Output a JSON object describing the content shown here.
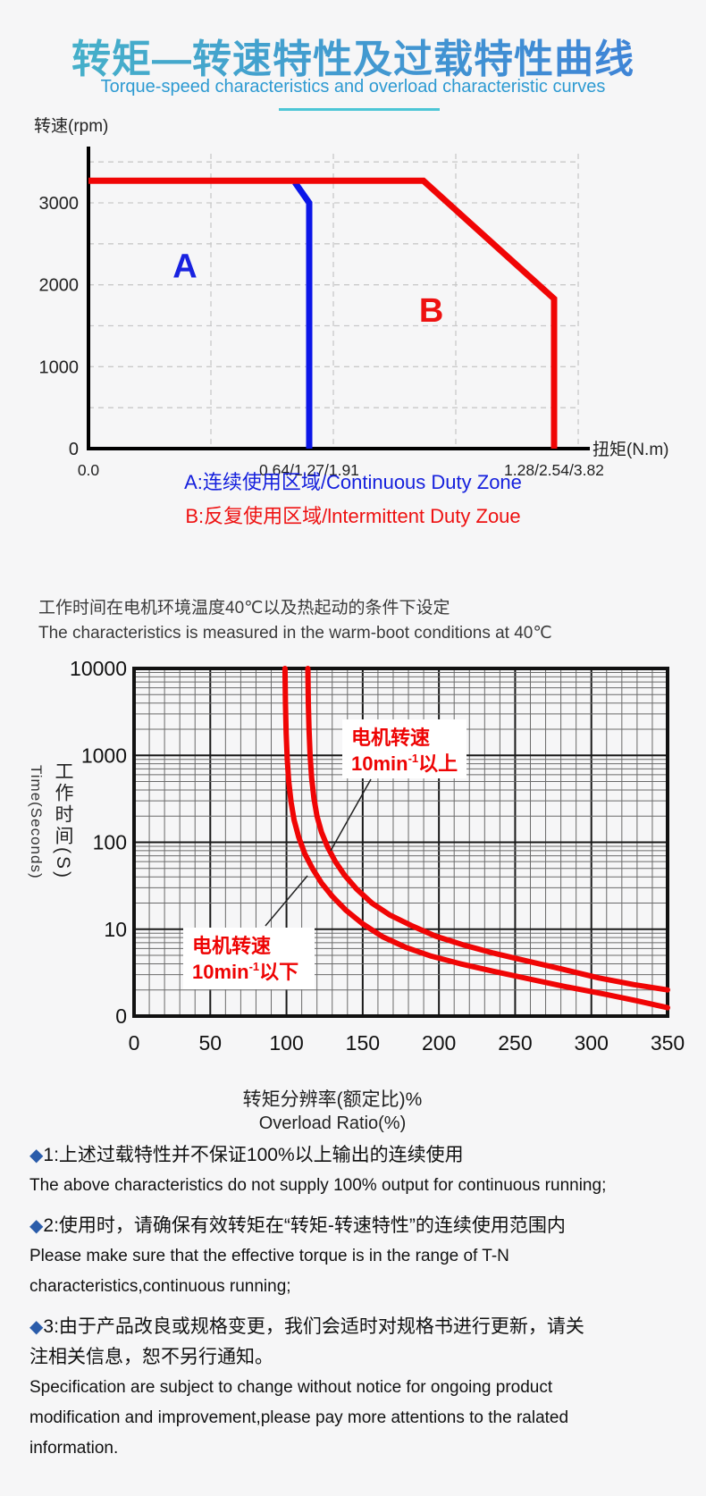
{
  "page_bg": "#f6f6f7",
  "header": {
    "title": "转矩—转速特性及过载特性曲线",
    "subtitle": "Torque-speed characteristics and overload characteristic curves",
    "title_gradient": [
      "#46b5c8",
      "#3e7fd8"
    ],
    "subtitle_color": "#2d9ad2",
    "underline_color": "#4cc6d6"
  },
  "conditions": {
    "zh": "工作时间在电机环境温度40℃以及热起动的条件下设定",
    "en": "The characteristics is measured in the warm-boot conditions at 40℃"
  },
  "legend": {
    "a": {
      "text": "A:连续使用区域/Continuous Duty Zone",
      "color": "#1520dd"
    },
    "b": {
      "text": "B:反复使用区域/lntermittent Duty Zoue",
      "color": "#ee1111"
    }
  },
  "chart_data": [
    {
      "type": "line",
      "title": "Torque-speed characteristic",
      "xlabel": "扭矩(N.m)",
      "ylabel": "转速(rpm)",
      "y_ticks": [
        0,
        1000,
        2000,
        3000
      ],
      "ylim": [
        0,
        3600
      ],
      "grid": "dashed, horizontal every 500 rpm, vertical quarters",
      "x_ticks": [
        {
          "label": "0.0",
          "pos": 0.0
        },
        {
          "label": "0.64/1.27/1.91",
          "pos": 0.4507
        },
        {
          "label": "1.28/2.54/3.82",
          "pos": 0.9507
        }
      ],
      "series": [
        {
          "name": "continuous-zone-boundary",
          "color": "#0b16e8",
          "width": 7,
          "points": [
            [
              0.4215,
              3250
            ],
            [
              0.4507,
              3000
            ],
            [
              0.4507,
              0
            ]
          ]
        },
        {
          "name": "intermittent-zone-boundary",
          "color": "#f00505",
          "width": 7,
          "points": [
            [
              0.0,
              3270
            ],
            [
              0.684,
              3270
            ],
            [
              0.9507,
              1830
            ],
            [
              0.9507,
              0
            ]
          ]
        }
      ],
      "zone_labels": [
        {
          "text": "A",
          "color": "#1822e0",
          "pos": 0.197,
          "rpm": 2090
        },
        {
          "text": "B",
          "color": "#ee1111",
          "pos": 0.7,
          "rpm": 1550
        }
      ]
    },
    {
      "type": "line",
      "title": "Overload characteristic",
      "xlabel_zh": "转矩分辨率(额定比)%",
      "xlabel_en": "Overload Ratio(%)",
      "ylabel_zh": "工作时间(S)",
      "ylabel_en": "Time(Seconds)",
      "y_scale": "log",
      "ylim": [
        1,
        10000
      ],
      "xlim": [
        0,
        350
      ],
      "x_ticks": [
        0,
        50,
        100,
        150,
        200,
        250,
        300,
        350
      ],
      "x_minor_step": 10,
      "y_tick_labels": [
        "10000",
        "1000",
        "100",
        "10",
        "0"
      ],
      "grid": "full log grid, dark thin lines",
      "series": [
        {
          "name": "speed-above-10min",
          "color": "#f00505",
          "width": 6,
          "points": [
            [
              114,
              10000
            ],
            [
              114.3,
              4000
            ],
            [
              114.8,
              2000
            ],
            [
              115.5,
              1000
            ],
            [
              116.5,
              550
            ],
            [
              118,
              320
            ],
            [
              120,
              200
            ],
            [
              123,
              130
            ],
            [
              127,
              88
            ],
            [
              132,
              60
            ],
            [
              138,
              42
            ],
            [
              146,
              29
            ],
            [
              156,
              20
            ],
            [
              168,
              14.5
            ],
            [
              182,
              11
            ],
            [
              198,
              8.3
            ],
            [
              216,
              6.6
            ],
            [
              236,
              5.3
            ],
            [
              258,
              4.3
            ],
            [
              280,
              3.5
            ],
            [
              305,
              2.75
            ],
            [
              328,
              2.3
            ],
            [
              350,
              2.0
            ]
          ]
        },
        {
          "name": "speed-below-10min",
          "color": "#f00505",
          "width": 6,
          "points": [
            [
              99,
              10000
            ],
            [
              99.3,
              4000
            ],
            [
              99.8,
              1800
            ],
            [
              100.5,
              900
            ],
            [
              101.5,
              500
            ],
            [
              103,
              290
            ],
            [
              105,
              180
            ],
            [
              108,
              115
            ],
            [
              112,
              74
            ],
            [
              117,
              50
            ],
            [
              123,
              34
            ],
            [
              130,
              24
            ],
            [
              139,
              16.5
            ],
            [
              150,
              11.5
            ],
            [
              163,
              8.2
            ],
            [
              178,
              6.2
            ],
            [
              195,
              4.9
            ],
            [
              214,
              4.0
            ],
            [
              235,
              3.3
            ],
            [
              258,
              2.7
            ],
            [
              282,
              2.2
            ],
            [
              308,
              1.8
            ],
            [
              330,
              1.5
            ],
            [
              350,
              1.25
            ]
          ]
        }
      ],
      "annotations": [
        {
          "id": "above",
          "line1": "电机转速",
          "pre": "10min",
          "sup": "-1",
          "post": "以上",
          "color": "#ee0404"
        },
        {
          "id": "below",
          "line1": "电机转速",
          "pre": "10min",
          "sup": "-1",
          "post": "以下",
          "color": "#ee0404"
        }
      ]
    }
  ],
  "notes": {
    "diamond": "◆",
    "diamond_color": "#2a5caa",
    "items": [
      {
        "num": "1:",
        "zh_lines": [
          "上述过载特性并不保证100%以上输出的连续使用"
        ],
        "en_lines": [
          "The above characteristics do not supply 100% output for continuous running;"
        ]
      },
      {
        "num": "2:",
        "zh_lines": [
          "使用时，请确保有效转矩在“转矩-转速特性”的连续使用范围内"
        ],
        "en_lines": [
          "Please make sure that the effective torque is in the range of T-N",
          "characteristics,continuous running;"
        ]
      },
      {
        "num": "3:",
        "zh_lines": [
          "由于产品改良或规格变更，我们会适时对规格书进行更新，请关",
          "注相关信息，恕不另行通知。"
        ],
        "en_lines": [
          "Specification are subject to change without notice for ongoing product",
          "modification and improvement,please pay more attentions to the ralated",
          "information."
        ]
      }
    ]
  }
}
